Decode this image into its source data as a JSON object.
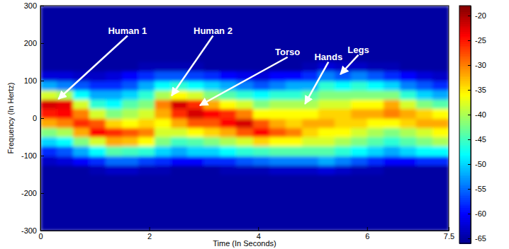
{
  "chart_data": {
    "type": "heatmap",
    "xlabel": "Time (In Seconds)",
    "ylabel": "Frequency (In Hertz)",
    "xlim": [
      0,
      7.5
    ],
    "ylim": [
      -300,
      300
    ],
    "xticks": [
      0,
      2,
      4,
      6,
      7.5
    ],
    "yticks": [
      -300,
      -200,
      -100,
      0,
      100,
      200,
      300
    ],
    "x": [
      0.15,
      0.45,
      0.75,
      1.05,
      1.35,
      1.65,
      1.95,
      2.25,
      2.55,
      2.85,
      3.15,
      3.45,
      3.75,
      4.05,
      4.35,
      4.65,
      4.95,
      5.25,
      5.55,
      5.85,
      6.15,
      6.45,
      6.75,
      7.05,
      7.35
    ],
    "y": [
      -287.5,
      -262.5,
      -237.5,
      -212.5,
      -187.5,
      -162.5,
      -137.5,
      -112.5,
      -87.5,
      -62.5,
      -37.5,
      -12.5,
      12.5,
      37.5,
      62.5,
      87.5,
      112.5,
      137.5,
      162.5,
      187.5,
      212.5,
      237.5,
      262.5,
      287.5
    ],
    "z": [
      [
        -65,
        -65,
        -65,
        -65,
        -65,
        -65,
        -65,
        -63,
        -58,
        -50,
        -42,
        -32,
        -25,
        -22,
        -38,
        -52,
        -62,
        -65,
        -65,
        -65,
        -65,
        -65,
        -65,
        -65
      ],
      [
        -65,
        -65,
        -65,
        -65,
        -65,
        -65,
        -65,
        -62,
        -56,
        -48,
        -40,
        -30,
        -24,
        -23,
        -40,
        -54,
        -62,
        -65,
        -65,
        -65,
        -65,
        -65,
        -65,
        -65
      ],
      [
        -65,
        -65,
        -65,
        -65,
        -65,
        -65,
        -65,
        -60,
        -52,
        -42,
        -32,
        -26,
        -30,
        -38,
        -48,
        -56,
        -63,
        -65,
        -65,
        -65,
        -65,
        -65,
        -65,
        -65
      ],
      [
        -65,
        -65,
        -65,
        -65,
        -65,
        -65,
        -64,
        -58,
        -48,
        -38,
        -24,
        -28,
        -38,
        -46,
        -52,
        -58,
        -63,
        -65,
        -65,
        -65,
        -65,
        -65,
        -65,
        -65
      ],
      [
        -65,
        -65,
        -65,
        -65,
        -65,
        -65,
        -63,
        -55,
        -44,
        -32,
        -26,
        -34,
        -42,
        -48,
        -52,
        -58,
        -62,
        -65,
        -65,
        -65,
        -65,
        -65,
        -65,
        -65
      ],
      [
        -65,
        -65,
        -65,
        -65,
        -65,
        -65,
        -63,
        -55,
        -45,
        -33,
        -28,
        -36,
        -40,
        -44,
        -50,
        -56,
        -60,
        -65,
        -65,
        -65,
        -65,
        -65,
        -65,
        -65
      ],
      [
        -65,
        -65,
        -65,
        -65,
        -65,
        -65,
        -64,
        -57,
        -46,
        -36,
        -30,
        -34,
        -38,
        -42,
        -46,
        -52,
        -58,
        -64,
        -65,
        -65,
        -65,
        -65,
        -65,
        -65
      ],
      [
        -65,
        -65,
        -65,
        -65,
        -65,
        -65,
        -64,
        -58,
        -50,
        -42,
        -38,
        -36,
        -32,
        -30,
        -40,
        -48,
        -56,
        -64,
        -65,
        -65,
        -65,
        -65,
        -65,
        -65
      ],
      [
        -65,
        -65,
        -65,
        -65,
        -65,
        -65,
        -65,
        -60,
        -52,
        -45,
        -38,
        -32,
        -26,
        -22,
        -36,
        -46,
        -56,
        -64,
        -65,
        -65,
        -65,
        -65,
        -65,
        -65
      ],
      [
        -65,
        -65,
        -65,
        -65,
        -65,
        -65,
        -65,
        -60,
        -50,
        -44,
        -36,
        -28,
        -22,
        -26,
        -38,
        -48,
        -57,
        -64,
        -65,
        -65,
        -65,
        -65,
        -65,
        -65
      ],
      [
        -65,
        -65,
        -65,
        -65,
        -65,
        -65,
        -65,
        -58,
        -50,
        -42,
        -34,
        -28,
        -24,
        -32,
        -42,
        -50,
        -58,
        -65,
        -65,
        -65,
        -65,
        -65,
        -65,
        -65
      ],
      [
        -65,
        -65,
        -65,
        -65,
        -65,
        -65,
        -64,
        -58,
        -48,
        -40,
        -32,
        -24,
        -26,
        -36,
        -44,
        -52,
        -60,
        -65,
        -65,
        -65,
        -65,
        -65,
        -65,
        -65
      ],
      [
        -65,
        -65,
        -65,
        -65,
        -65,
        -65,
        -64,
        -56,
        -46,
        -38,
        -28,
        -22,
        -30,
        -38,
        -46,
        -54,
        -61,
        -65,
        -65,
        -65,
        -65,
        -65,
        -65,
        -65
      ],
      [
        -65,
        -65,
        -65,
        -65,
        -65,
        -65,
        -64,
        -55,
        -45,
        -34,
        -24,
        -28,
        -36,
        -42,
        -48,
        -56,
        -62,
        -65,
        -65,
        -65,
        -65,
        -65,
        -65,
        -65
      ],
      [
        -65,
        -65,
        -65,
        -65,
        -65,
        -65,
        -63,
        -54,
        -44,
        -36,
        -28,
        -32,
        -36,
        -40,
        -46,
        -54,
        -60,
        -65,
        -65,
        -65,
        -65,
        -65,
        -65,
        -65
      ],
      [
        -65,
        -65,
        -65,
        -65,
        -65,
        -65,
        -63,
        -54,
        -44,
        -36,
        -30,
        -34,
        -36,
        -40,
        -46,
        -52,
        -60,
        -65,
        -65,
        -65,
        -65,
        -65,
        -65,
        -65
      ],
      [
        -65,
        -65,
        -65,
        -65,
        -65,
        -65,
        -63,
        -54,
        -44,
        -38,
        -34,
        -32,
        -36,
        -40,
        -44,
        -52,
        -58,
        -64,
        -65,
        -65,
        -65,
        -65,
        -65,
        -65
      ],
      [
        -65,
        -65,
        -65,
        -65,
        -65,
        -65,
        -62,
        -52,
        -44,
        -38,
        -36,
        -32,
        -34,
        -38,
        -42,
        -46,
        -54,
        -62,
        -65,
        -65,
        -65,
        -65,
        -65,
        -65
      ],
      [
        -65,
        -65,
        -65,
        -65,
        -65,
        -65,
        -63,
        -54,
        -46,
        -40,
        -36,
        -34,
        -34,
        -38,
        -42,
        -48,
        -56,
        -63,
        -65,
        -65,
        -65,
        -65,
        -65,
        -65
      ],
      [
        -65,
        -65,
        -65,
        -65,
        -65,
        -65,
        -64,
        -56,
        -48,
        -42,
        -38,
        -34,
        -32,
        -36,
        -42,
        -46,
        -54,
        -63,
        -65,
        -65,
        -65,
        -65,
        -65,
        -65
      ],
      [
        -65,
        -65,
        -65,
        -65,
        -65,
        -65,
        -64,
        -58,
        -50,
        -44,
        -40,
        -36,
        -32,
        -36,
        -42,
        -48,
        -56,
        -64,
        -65,
        -65,
        -65,
        -65,
        -65,
        -65
      ],
      [
        -65,
        -65,
        -65,
        -65,
        -65,
        -65,
        -65,
        -60,
        -52,
        -46,
        -42,
        -36,
        -30,
        -32,
        -42,
        -50,
        -58,
        -64,
        -65,
        -65,
        -65,
        -65,
        -65,
        -65
      ],
      [
        -65,
        -65,
        -65,
        -65,
        -65,
        -65,
        -65,
        -60,
        -50,
        -44,
        -40,
        -34,
        -32,
        -38,
        -46,
        -54,
        -60,
        -65,
        -65,
        -65,
        -65,
        -65,
        -65,
        -65
      ],
      [
        -65,
        -65,
        -65,
        -65,
        -65,
        -65,
        -65,
        -58,
        -48,
        -42,
        -38,
        -32,
        -34,
        -42,
        -50,
        -56,
        -62,
        -65,
        -65,
        -65,
        -65,
        -65,
        -65,
        -65
      ],
      [
        -65,
        -65,
        -65,
        -65,
        -65,
        -65,
        -65,
        -58,
        -48,
        -40,
        -36,
        -32,
        -36,
        -44,
        -52,
        -58,
        -63,
        -65,
        -65,
        -65,
        -65,
        -65,
        -65,
        -65
      ]
    ],
    "colorbar": {
      "range": [
        -66,
        -18
      ],
      "ticks": [
        -20,
        -25,
        -30,
        -35,
        -40,
        -45,
        -50,
        -55,
        -60,
        -65
      ]
    },
    "annotations": [
      {
        "text": "Human 1",
        "x": 0.33,
        "y": 51,
        "text_x": 1.6,
        "text_y": 233
      },
      {
        "text": "Human 2",
        "x": 2.41,
        "y": 60,
        "text_x": 3.17,
        "text_y": 233
      },
      {
        "text": "Torso",
        "x": 2.93,
        "y": 34,
        "text_x": 4.54,
        "text_y": 176
      },
      {
        "text": "Hands",
        "x": 4.86,
        "y": 38,
        "text_x": 5.29,
        "text_y": 163
      },
      {
        "text": "Legs",
        "x": 5.51,
        "y": 117,
        "text_x": 5.84,
        "text_y": 182
      }
    ]
  }
}
